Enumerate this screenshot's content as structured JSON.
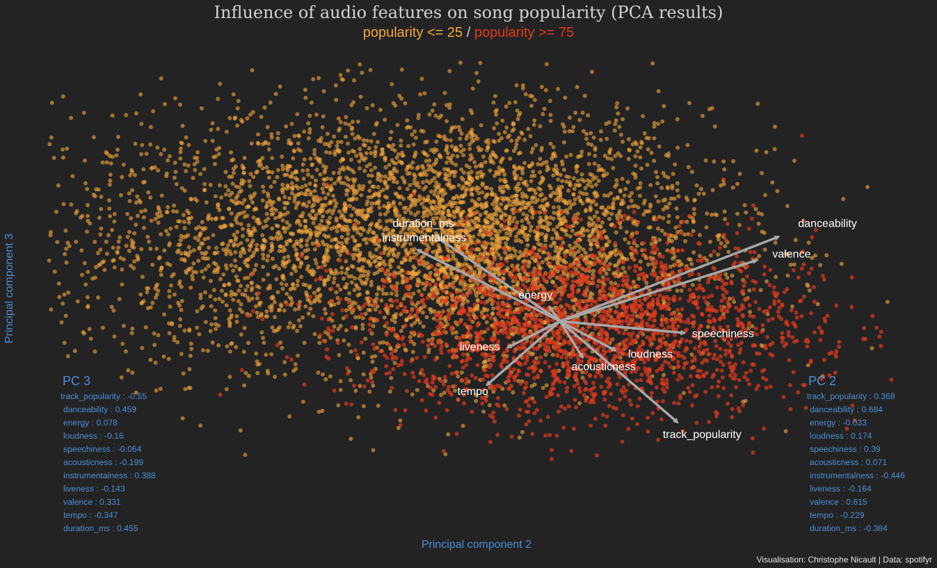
{
  "title": "Influence of audio features on song popularity (PCA results)",
  "subtitle": {
    "low": "popularity <= 25",
    "sep": " / ",
    "high": "popularity >= 75"
  },
  "colors": {
    "background": "#232323",
    "low": "#f5a73c",
    "high": "#e03a1e",
    "arrow": "#a8a8a8",
    "axis_label": "#4c8fd6"
  },
  "chart_data": {
    "type": "scatter",
    "title": "Influence of audio features on song popularity (PCA results)",
    "xlabel": "Principal component 2",
    "ylabel": "Principal component 3",
    "xlim": [
      -1.0,
      1.0
    ],
    "ylim": [
      -0.75,
      0.75
    ],
    "grid": false,
    "series": [
      {
        "name": "popularity <= 25",
        "color": "#f5a73c",
        "cluster": {
          "x_center": -0.08,
          "y_center": 0.18,
          "x_spread": 0.32,
          "y_spread": 0.2,
          "count": 4800
        }
      },
      {
        "name": "popularity >= 75",
        "color": "#e03a1e",
        "cluster": {
          "x_center": 0.28,
          "y_center": -0.1,
          "x_spread": 0.26,
          "y_spread": 0.14,
          "count": 2200
        }
      }
    ],
    "loadings": [
      {
        "name": "track_popularity",
        "pc2": 0.368,
        "pc3": -0.55
      },
      {
        "name": "danceability",
        "pc2": 0.684,
        "pc3": 0.459
      },
      {
        "name": "energy",
        "pc2": -0.033,
        "pc3": 0.078
      },
      {
        "name": "loudness",
        "pc2": 0.174,
        "pc3": -0.16
      },
      {
        "name": "speechiness",
        "pc2": 0.39,
        "pc3": -0.064
      },
      {
        "name": "acousticness",
        "pc2": 0.071,
        "pc3": -0.199
      },
      {
        "name": "instrumentalness",
        "pc2": -0.446,
        "pc3": 0.388
      },
      {
        "name": "liveness",
        "pc2": -0.164,
        "pc3": -0.143
      },
      {
        "name": "valence",
        "pc2": 0.615,
        "pc3": 0.331
      },
      {
        "name": "tempo",
        "pc2": -0.229,
        "pc3": -0.347
      },
      {
        "name": "duration_ms",
        "pc2": -0.384,
        "pc3": 0.455
      }
    ]
  },
  "pc3_panel": {
    "title": "PC 3",
    "rows": [
      "track_popularity : -0.55",
      "danceability : 0.459",
      "energy : 0.078",
      "loudness : -0.16",
      "speechiness : -0.064",
      "acousticness : -0.199",
      "instrumentalness : 0.388",
      "liveness : -0.143",
      "valence : 0.331",
      "tempo : -0.347",
      "duration_ms : 0.455"
    ]
  },
  "pc2_panel": {
    "title": "PC 2",
    "rows": [
      "track_popularity : 0.368",
      "danceability : 0.684",
      "energy : -0.033",
      "loudness : 0.174",
      "speechiness : 0.39",
      "acousticness : 0.071",
      "instrumentalness : -0.446",
      "liveness : -0.164",
      "valence : 0.615",
      "tempo : -0.229",
      "duration_ms : -0.384"
    ]
  },
  "caption": "Visualisation: Christophe Nicault | Data: spotifyr"
}
